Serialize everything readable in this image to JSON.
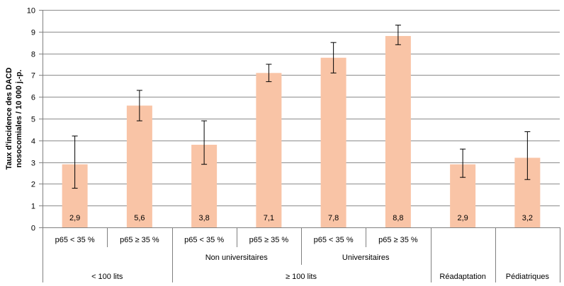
{
  "chart_data": {
    "type": "bar",
    "ylabel_lines": [
      "Taux d'incidence des DACD",
      "nosocomiales / 10 000 j.-p."
    ],
    "ylim": [
      0,
      10
    ],
    "yticks": [
      "0",
      "1",
      "2",
      "3",
      "4",
      "5",
      "6",
      "7",
      "8",
      "9",
      "10"
    ],
    "grid": true,
    "legend": "none",
    "categories": [
      "p65 < 35 %",
      "p65 ≥ 35 %",
      "p65 < 35 %",
      "p65 ≥ 35 %",
      "p65 < 35 %",
      "p65 ≥ 35 %",
      "",
      ""
    ],
    "values": [
      2.9,
      5.6,
      3.8,
      7.1,
      7.8,
      8.8,
      2.9,
      3.2
    ],
    "value_labels": [
      "2,9",
      "5,6",
      "3,8",
      "7,1",
      "7,8",
      "8,8",
      "2,9",
      "3,2"
    ],
    "error_low": [
      1.8,
      4.9,
      2.9,
      6.7,
      7.1,
      8.4,
      2.3,
      2.2
    ],
    "error_high": [
      4.2,
      6.3,
      4.9,
      7.5,
      8.5,
      9.3,
      3.6,
      4.4
    ],
    "subgroups": [
      {
        "label": "Non universitaires",
        "start": 2,
        "end": 3
      },
      {
        "label": "Universitaires",
        "start": 4,
        "end": 5
      }
    ],
    "groups": [
      {
        "label": "< 100 lits",
        "start": 0,
        "end": 1
      },
      {
        "label": "≥ 100 lits",
        "start": 2,
        "end": 5
      },
      {
        "label": "Réadaptation",
        "start": 6,
        "end": 6
      },
      {
        "label": "Pédiatriques",
        "start": 7,
        "end": 7
      }
    ],
    "bar_color": "#f9c4a6",
    "grid_color": "#8c8c8c",
    "axis_color": "#808080"
  }
}
